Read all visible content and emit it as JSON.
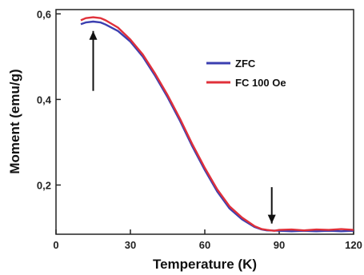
{
  "chart_data": {
    "type": "line",
    "xlabel": "Temperature (K)",
    "ylabel": "Moment (emu/g)",
    "xlim": [
      0,
      120
    ],
    "ylim": [
      0.085,
      0.61
    ],
    "x_ticks": [
      "0",
      "30",
      "60",
      "90",
      "120"
    ],
    "y_ticks": [
      {
        "value": 0.2,
        "label": "0,2"
      },
      {
        "value": 0.4,
        "label": "0,4"
      },
      {
        "value": 0.6,
        "label": "0,6"
      }
    ],
    "legend_position": "upper-right",
    "series": [
      {
        "name": "ZFC",
        "color": "#3b3fb0",
        "x": [
          10,
          12,
          15,
          18,
          20,
          25,
          30,
          35,
          40,
          45,
          50,
          55,
          60,
          65,
          70,
          75,
          80,
          83,
          85,
          90,
          95,
          100,
          105,
          110,
          115,
          120
        ],
        "y": [
          0.576,
          0.58,
          0.582,
          0.58,
          0.575,
          0.56,
          0.535,
          0.5,
          0.455,
          0.405,
          0.35,
          0.29,
          0.235,
          0.185,
          0.145,
          0.12,
          0.102,
          0.096,
          0.094,
          0.093,
          0.092,
          0.093,
          0.092,
          0.093,
          0.092,
          0.093
        ]
      },
      {
        "name": "FC 100 Oe",
        "color": "#e0303a",
        "x": [
          10,
          12,
          15,
          18,
          20,
          25,
          30,
          35,
          40,
          45,
          50,
          55,
          60,
          65,
          70,
          75,
          80,
          83,
          85,
          88,
          90,
          95,
          100,
          105,
          110,
          115,
          120
        ],
        "y": [
          0.585,
          0.59,
          0.592,
          0.59,
          0.585,
          0.568,
          0.54,
          0.505,
          0.46,
          0.41,
          0.355,
          0.295,
          0.24,
          0.19,
          0.15,
          0.124,
          0.104,
          0.097,
          0.095,
          0.093,
          0.095,
          0.096,
          0.094,
          0.096,
          0.095,
          0.097,
          0.095
        ]
      }
    ],
    "annotations": [
      {
        "type": "arrow",
        "direction": "up",
        "x": 15,
        "y_from": 0.42,
        "y_to": 0.56
      },
      {
        "type": "arrow",
        "direction": "down",
        "x": 87,
        "y_from": 0.195,
        "y_to": 0.11
      }
    ]
  }
}
